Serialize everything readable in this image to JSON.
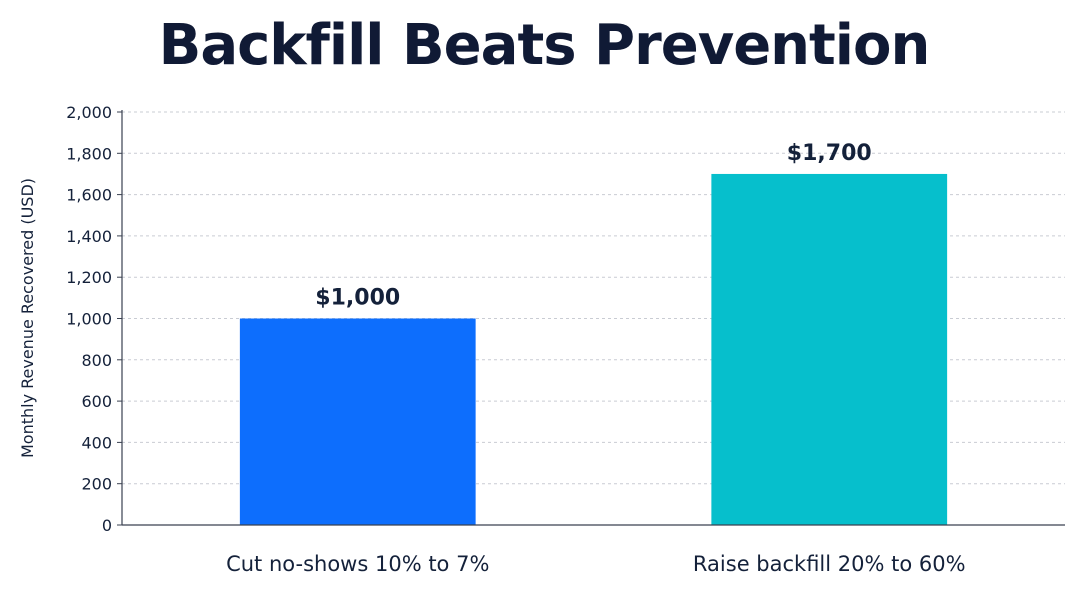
{
  "chart_data": {
    "type": "bar",
    "title": "Backfill Beats Prevention",
    "xlabel": "",
    "ylabel": "Monthly Revenue Recovered (USD)",
    "categories": [
      "Cut no-shows 10% to 7%",
      "Raise backfill 20% to 60%"
    ],
    "values": [
      1000,
      1700
    ],
    "data_labels": [
      "$1,000",
      "$1,700"
    ],
    "colors": [
      "#0d6efd",
      "#06bfcc"
    ],
    "ylim": [
      0,
      2000
    ],
    "yticks": [
      0,
      200,
      400,
      600,
      800,
      1000,
      1200,
      1400,
      1600,
      1800,
      2000
    ],
    "ytick_labels": [
      "0",
      "200",
      "400",
      "600",
      "800",
      "1,000",
      "1,200",
      "1,400",
      "1,600",
      "1,800",
      "2,000"
    ],
    "grid": true,
    "legend": "none"
  }
}
